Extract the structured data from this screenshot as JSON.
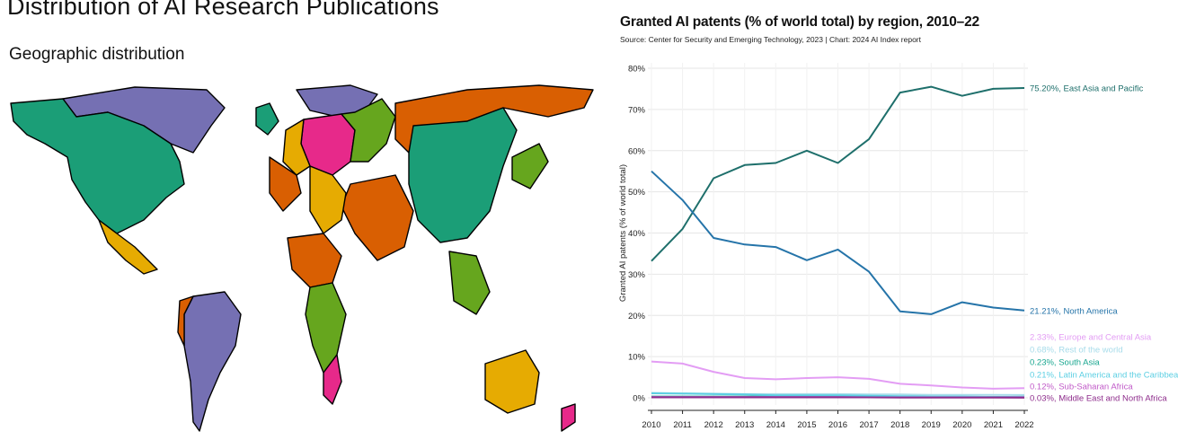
{
  "page": {
    "title": "Distribution of AI Research Publications",
    "section_title": "Geographic distribution"
  },
  "map": {
    "region_colors": {
      "north_america": "#1b9e77",
      "arctic_purple": "#7570b3",
      "europe_pink": "#e7298a",
      "green": "#66a61e",
      "orange": "#d95f02",
      "yellow": "#e6ab02"
    }
  },
  "chart_data": {
    "type": "line",
    "title": "Granted AI patents (% of world total) by region, 2010–22",
    "source": "Source: Center for Security and Emerging Technology, 2023 | Chart: 2024 AI Index report",
    "ylabel": "Granted AI patents (% of world total)",
    "xlabel": "",
    "ylim": [
      0,
      80
    ],
    "yticks": [
      0,
      10,
      20,
      30,
      40,
      50,
      60,
      70,
      80
    ],
    "ytick_labels": [
      "0%",
      "10%",
      "20%",
      "30%",
      "40%",
      "50%",
      "60%",
      "70%",
      "80%"
    ],
    "x": [
      2010,
      2011,
      2012,
      2013,
      2014,
      2015,
      2016,
      2017,
      2018,
      2019,
      2020,
      2021,
      2022
    ],
    "grid": "horizontal",
    "series": [
      {
        "name": "East Asia and Pacific",
        "end_label": "75.20%, East Asia and Pacific",
        "color": "#1e6f6b",
        "values": [
          33.2,
          41,
          53.3,
          56.5,
          57,
          60,
          57,
          62.8,
          74.1,
          75.5,
          73.3,
          75,
          75.2
        ]
      },
      {
        "name": "North America",
        "end_label": "21.21%, North America",
        "color": "#2574a9",
        "values": [
          55,
          48,
          38.8,
          37.2,
          36.6,
          33.4,
          36,
          30.6,
          21,
          20.3,
          23.2,
          21.9,
          21.21
        ]
      },
      {
        "name": "Europe and Central Asia",
        "end_label": "2.33%, Europe and Central Asia",
        "color": "#e39df4",
        "values": [
          8.8,
          8.3,
          6.3,
          4.8,
          4.5,
          4.8,
          5,
          4.6,
          3.4,
          3,
          2.5,
          2.2,
          2.33
        ]
      },
      {
        "name": "Rest of the world",
        "end_label": "0.68%, Rest of the world",
        "color": "#a7dcea",
        "values": [
          1.2,
          1.1,
          1,
          0.9,
          0.9,
          0.9,
          0.9,
          0.8,
          0.8,
          0.7,
          0.7,
          0.7,
          0.68
        ]
      },
      {
        "name": "South Asia",
        "end_label": "0.23%, South Asia",
        "color": "#17a68f",
        "values": [
          0.3,
          0.3,
          0.3,
          0.3,
          0.3,
          0.3,
          0.3,
          0.3,
          0.3,
          0.2,
          0.2,
          0.2,
          0.23
        ]
      },
      {
        "name": "Latin America and the Caribbean",
        "end_label": "0.21%, Latin America and the Caribbean",
        "color": "#5ccfe3",
        "values": [
          1.1,
          1,
          0.9,
          0.8,
          0.6,
          0.6,
          0.6,
          0.5,
          0.4,
          0.3,
          0.3,
          0.2,
          0.21
        ]
      },
      {
        "name": "Sub-Saharan Africa",
        "end_label": "0.12%, Sub-Saharan Africa",
        "color": "#c15ac8",
        "values": [
          0.2,
          0.2,
          0.2,
          0.2,
          0.2,
          0.2,
          0.2,
          0.1,
          0.1,
          0.1,
          0.1,
          0.1,
          0.12
        ]
      },
      {
        "name": "Middle East and North Africa",
        "end_label": "0.03%, Middle East and North Africa",
        "color": "#8e2d8c",
        "values": [
          0.1,
          0.1,
          0.1,
          0.1,
          0.1,
          0.1,
          0.1,
          0.1,
          0.05,
          0.05,
          0.05,
          0.04,
          0.03
        ]
      }
    ]
  }
}
